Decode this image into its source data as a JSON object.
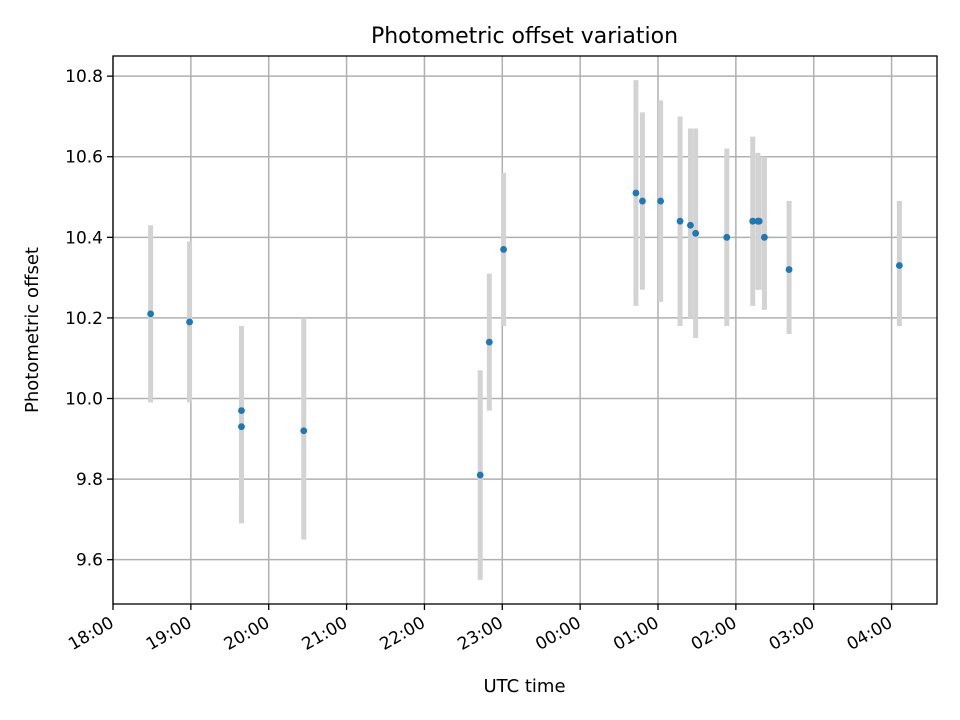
{
  "chart_data": {
    "type": "scatter",
    "title": "Photometric offset variation",
    "xlabel": "UTC time",
    "ylabel": "Photometric offset",
    "xlim": [
      "18:00",
      "04:35"
    ],
    "ylim": [
      9.49,
      10.85
    ],
    "x_ticks": [
      "18:00",
      "19:00",
      "20:00",
      "21:00",
      "22:00",
      "23:00",
      "00:00",
      "01:00",
      "02:00",
      "03:00",
      "04:00"
    ],
    "y_ticks": [
      9.6,
      9.8,
      10.0,
      10.2,
      10.4,
      10.6,
      10.8
    ],
    "y_tick_labels": [
      "9.6",
      "9.8",
      "10.0",
      "10.2",
      "10.4",
      "10.6",
      "10.8"
    ],
    "grid": true,
    "error_bar_color": "#d3d3d3",
    "point_color": "#1f77b4",
    "points": [
      {
        "time": "18:29",
        "y": 10.21,
        "y_low": 9.99,
        "y_high": 10.43
      },
      {
        "time": "18:59",
        "y": 10.19,
        "y_low": 9.99,
        "y_high": 10.39
      },
      {
        "time": "19:39",
        "y": 9.97,
        "y_low": 9.77,
        "y_high": 10.18
      },
      {
        "time": "19:39",
        "y": 9.93,
        "y_low": 9.69,
        "y_high": 10.16
      },
      {
        "time": "20:27",
        "y": 9.92,
        "y_low": 9.65,
        "y_high": 10.2
      },
      {
        "time": "22:43",
        "y": 9.81,
        "y_low": 9.55,
        "y_high": 10.07
      },
      {
        "time": "22:50",
        "y": 10.14,
        "y_low": 9.97,
        "y_high": 10.31
      },
      {
        "time": "23:01",
        "y": 10.37,
        "y_low": 10.18,
        "y_high": 10.56
      },
      {
        "time": "00:43",
        "y": 10.51,
        "y_low": 10.23,
        "y_high": 10.79
      },
      {
        "time": "00:48",
        "y": 10.49,
        "y_low": 10.27,
        "y_high": 10.71
      },
      {
        "time": "01:02",
        "y": 10.49,
        "y_low": 10.24,
        "y_high": 10.74
      },
      {
        "time": "01:17",
        "y": 10.44,
        "y_low": 10.18,
        "y_high": 10.7
      },
      {
        "time": "01:25",
        "y": 10.43,
        "y_low": 10.2,
        "y_high": 10.67
      },
      {
        "time": "01:29",
        "y": 10.41,
        "y_low": 10.15,
        "y_high": 10.67
      },
      {
        "time": "01:53",
        "y": 10.4,
        "y_low": 10.18,
        "y_high": 10.62
      },
      {
        "time": "02:13",
        "y": 10.44,
        "y_low": 10.23,
        "y_high": 10.65
      },
      {
        "time": "02:17",
        "y": 10.44,
        "y_low": 10.27,
        "y_high": 10.61
      },
      {
        "time": "02:18",
        "y": 10.44,
        "y_low": 10.27,
        "y_high": 10.6
      },
      {
        "time": "02:22",
        "y": 10.4,
        "y_low": 10.22,
        "y_high": 10.6
      },
      {
        "time": "02:41",
        "y": 10.32,
        "y_low": 10.16,
        "y_high": 10.49
      },
      {
        "time": "04:06",
        "y": 10.33,
        "y_low": 10.18,
        "y_high": 10.49
      }
    ]
  }
}
